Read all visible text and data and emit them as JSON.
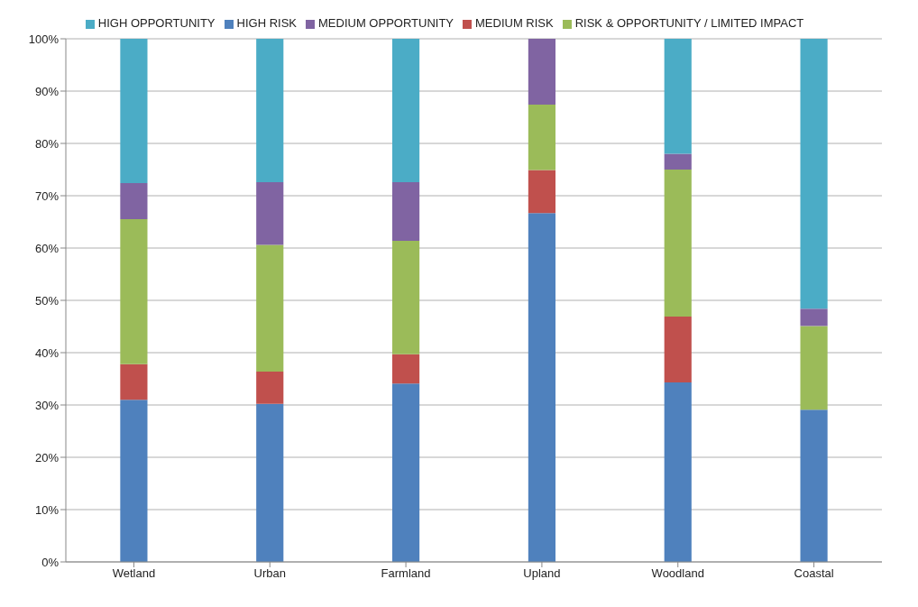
{
  "chart_data": {
    "type": "bar",
    "stacked": true,
    "categories": [
      "Wetland",
      "Urban",
      "Farmland",
      "Upland",
      "Woodland",
      "Coastal"
    ],
    "series": [
      {
        "name": "HIGH RISK",
        "color": "#4f81bd",
        "values": [
          31.0,
          30.2,
          34.1,
          66.7,
          34.3,
          29.1
        ]
      },
      {
        "name": "MEDIUM RISK",
        "color": "#c0504d",
        "values": [
          6.8,
          6.2,
          5.6,
          8.2,
          12.6,
          0
        ]
      },
      {
        "name": "RISK & OPPORTUNITY / LIMITED IMPACT",
        "color": "#9bbb59",
        "values": [
          27.7,
          24.2,
          21.7,
          12.5,
          28.1,
          16.0
        ]
      },
      {
        "name": "MEDIUM OPPORTUNITY",
        "color": "#8064a2",
        "values": [
          6.9,
          12.0,
          11.2,
          12.6,
          3.0,
          3.3
        ]
      },
      {
        "name": "HIGH OPPORTUNITY",
        "color": "#4bacc6",
        "values": [
          27.6,
          27.4,
          27.4,
          0,
          22.0,
          51.6
        ]
      }
    ],
    "ylim": [
      0,
      100
    ],
    "yticks": [
      {
        "value": 0,
        "label": "0%"
      },
      {
        "value": 10,
        "label": "10%"
      },
      {
        "value": 20,
        "label": "20%"
      },
      {
        "value": 30,
        "label": "30%"
      },
      {
        "value": 40,
        "label": "40%"
      },
      {
        "value": 50,
        "label": "50%"
      },
      {
        "value": 60,
        "label": "60%"
      },
      {
        "value": 70,
        "label": "70%"
      },
      {
        "value": 80,
        "label": "80%"
      },
      {
        "value": 90,
        "label": "90%"
      },
      {
        "value": 100,
        "label": "100%"
      }
    ],
    "grid": "y",
    "legend": "top"
  }
}
